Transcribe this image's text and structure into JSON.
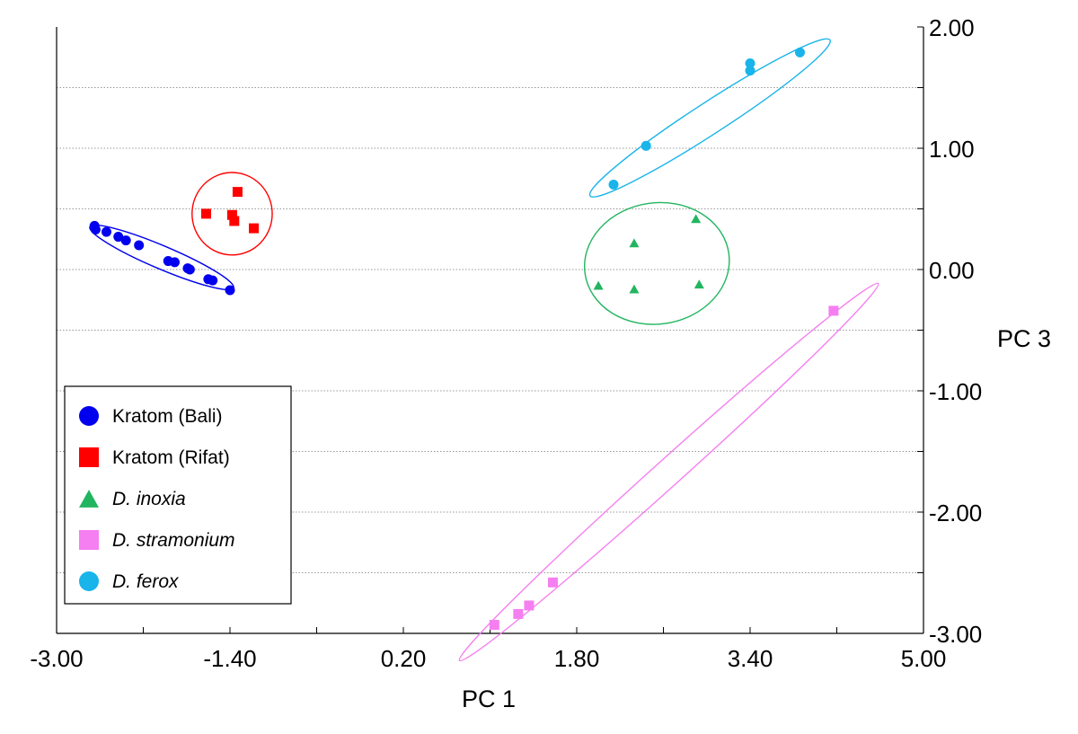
{
  "chart_data": {
    "type": "scatter",
    "xlabel": "PC 1",
    "ylabel": "PC 3",
    "xlim": [
      -3.0,
      5.0
    ],
    "ylim": [
      -3.0,
      2.0
    ],
    "x_tick_labels": [
      "-3.00",
      "-1.40",
      "0.20",
      "1.80",
      "3.40",
      "5.00"
    ],
    "x_ticks": [
      -3.0,
      -1.4,
      0.2,
      1.8,
      3.4,
      5.0
    ],
    "y_tick_labels": [
      "2.00",
      "1.00",
      "0.00",
      "-1.00",
      "-2.00",
      "-3.00"
    ],
    "y_ticks": [
      2.0,
      1.0,
      0.0,
      -1.0,
      -2.0,
      -3.0
    ],
    "grid": "horizontal dotted",
    "legend_position": "lower-left",
    "series": [
      {
        "name": "Kratom (Bali)",
        "marker": "circle",
        "color": "#0000ee",
        "italic": false,
        "points": [
          [
            -2.65,
            0.36
          ],
          [
            -2.64,
            0.33
          ],
          [
            -2.54,
            0.31
          ],
          [
            -2.43,
            0.27
          ],
          [
            -2.36,
            0.24
          ],
          [
            -2.24,
            0.2
          ],
          [
            -1.97,
            0.07
          ],
          [
            -1.91,
            0.06
          ],
          [
            -1.79,
            0.01
          ],
          [
            -1.77,
            0.0
          ],
          [
            -1.6,
            -0.08
          ],
          [
            -1.56,
            -0.09
          ],
          [
            -1.4,
            -0.17
          ]
        ]
      },
      {
        "name": "Kratom (Rifat)",
        "marker": "square",
        "color": "#ff0000",
        "italic": false,
        "points": [
          [
            -1.62,
            0.46
          ],
          [
            -1.33,
            0.64
          ],
          [
            -1.38,
            0.45
          ],
          [
            -1.36,
            0.4
          ],
          [
            -1.18,
            0.34
          ]
        ]
      },
      {
        "name": "D. inoxia",
        "marker": "triangle",
        "color": "#22b560",
        "italic": true,
        "points": [
          [
            2.0,
            -0.13
          ],
          [
            2.33,
            0.22
          ],
          [
            2.33,
            -0.16
          ],
          [
            2.9,
            0.42
          ],
          [
            2.93,
            -0.12
          ]
        ]
      },
      {
        "name": "D. stramonium",
        "marker": "square",
        "color": "#f57ff0",
        "italic": true,
        "points": [
          [
            1.04,
            -2.93
          ],
          [
            1.26,
            -2.84
          ],
          [
            1.36,
            -2.77
          ],
          [
            1.58,
            -2.58
          ],
          [
            4.17,
            -0.34
          ]
        ]
      },
      {
        "name": "D. ferox",
        "marker": "circle",
        "color": "#18b4ea",
        "italic": true,
        "points": [
          [
            2.14,
            0.7
          ],
          [
            2.44,
            1.02
          ],
          [
            3.4,
            1.7
          ],
          [
            3.4,
            1.64
          ],
          [
            3.86,
            1.79
          ]
        ]
      }
    ],
    "ellipses": [
      {
        "series": "Kratom (Bali)",
        "color": "#0000ee",
        "cx": -2.03,
        "cy": 0.1,
        "rx": 0.72,
        "ry": 0.095,
        "angle_deg": 23
      },
      {
        "series": "Kratom (Rifat)",
        "color": "#ff0000",
        "cx": -1.38,
        "cy": 0.46,
        "rx": 0.37,
        "ry": 0.34,
        "angle_deg": 0
      },
      {
        "series": "D. inoxia",
        "color": "#22b560",
        "cx": 2.54,
        "cy": 0.05,
        "rx": 0.67,
        "ry": 0.5,
        "angle_deg": -8
      },
      {
        "series": "D. stramonium",
        "color": "#f57ff0",
        "cx": 2.65,
        "cy": -1.67,
        "rx": 2.6,
        "ry": 0.11,
        "angle_deg": -42
      },
      {
        "series": "D. ferox",
        "color": "#18b4ea",
        "cx": 3.03,
        "cy": 1.25,
        "rx": 1.32,
        "ry": 0.13,
        "angle_deg": -33
      }
    ]
  }
}
